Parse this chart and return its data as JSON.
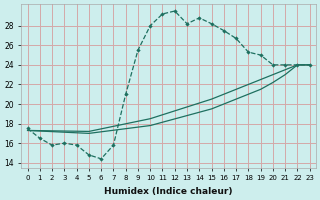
{
  "xlabel": "Humidex (Indice chaleur)",
  "bg_color": "#cdeeed",
  "grid_color": "#d4a8a8",
  "line_color": "#1e7060",
  "xlim": [
    -0.5,
    23.5
  ],
  "ylim": [
    13.5,
    30.2
  ],
  "yticks": [
    14,
    16,
    18,
    20,
    22,
    24,
    26,
    28
  ],
  "xticks": [
    0,
    1,
    2,
    3,
    4,
    5,
    6,
    7,
    8,
    9,
    10,
    11,
    12,
    13,
    14,
    15,
    16,
    17,
    18,
    19,
    20,
    21,
    22,
    23
  ],
  "main_line": {
    "x": [
      0,
      1,
      2,
      3,
      4,
      5,
      6,
      7,
      8,
      9,
      10,
      11,
      12,
      13,
      14,
      15,
      16,
      17,
      18,
      19,
      20,
      21,
      22,
      23
    ],
    "y": [
      17.5,
      16.5,
      15.8,
      16.0,
      15.8,
      14.8,
      14.4,
      15.8,
      21.0,
      25.5,
      28.0,
      29.2,
      29.5,
      28.2,
      28.8,
      28.2,
      27.5,
      26.7,
      25.3,
      25.0,
      24.0,
      24.0,
      24.0,
      24.0
    ]
  },
  "line2": {
    "x": [
      0,
      23
    ],
    "y": [
      17.3,
      24.0
    ]
  },
  "line3": {
    "x": [
      0,
      23
    ],
    "y": [
      17.3,
      24.0
    ]
  },
  "line2_full": {
    "x": [
      0,
      5,
      10,
      15,
      19,
      20,
      21,
      22,
      23
    ],
    "y": [
      17.3,
      17.2,
      18.5,
      20.5,
      22.5,
      23.0,
      23.5,
      24.0,
      24.0
    ]
  },
  "line3_full": {
    "x": [
      0,
      5,
      10,
      15,
      19,
      20,
      21,
      22,
      23
    ],
    "y": [
      17.3,
      17.0,
      17.8,
      19.5,
      21.5,
      22.2,
      23.0,
      24.0,
      24.0
    ]
  }
}
